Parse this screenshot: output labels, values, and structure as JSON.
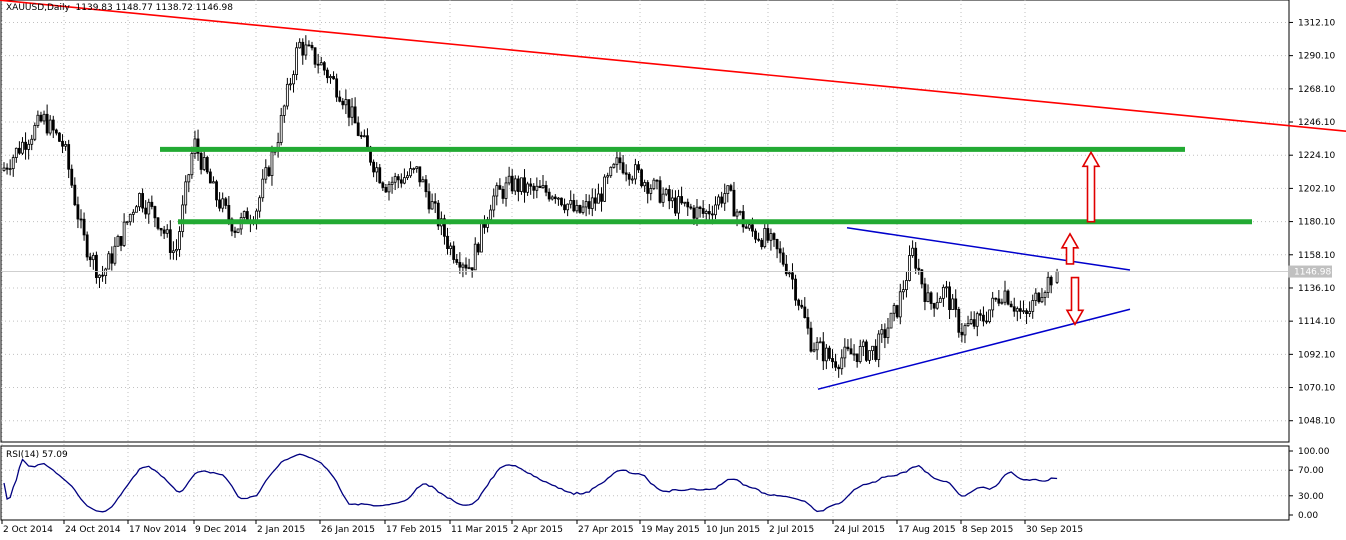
{
  "header": {
    "symbol": "XAUUSD,Daily",
    "ohlc": "1139.83 1148.77 1138.72 1146.98"
  },
  "rsi_header": "RSI(14) 57.09",
  "current_price_label": "1146.98",
  "colors": {
    "background": "#ffffff",
    "grid": "#c0c0c0",
    "candle": "#000000",
    "red_trendline": "#ff0000",
    "green_levels": "#22aa33",
    "blue_triangle": "#0000cc",
    "rsi_line": "#000080",
    "arrows": "#e00000"
  },
  "chart_data": [
    {
      "type": "candlestick",
      "title": "XAUUSD,Daily",
      "instrument": "XAUUSD",
      "timeframe": "Daily",
      "last_bar": {
        "open": 1139.83,
        "high": 1148.77,
        "low": 1138.72,
        "close": 1146.98
      },
      "ylim": [
        1034,
        1323
      ],
      "yticks": [
        1048.1,
        1070.1,
        1092.1,
        1114.1,
        1136.1,
        1158.1,
        1180.1,
        1202.1,
        1224.1,
        1246.1,
        1268.1,
        1290.1,
        1312.1
      ],
      "xticks": [
        "2 Oct 2014",
        "24 Oct 2014",
        "17 Nov 2014",
        "9 Dec 2014",
        "2 Jan 2015",
        "26 Jan 2015",
        "17 Feb 2015",
        "11 Mar 2015",
        "2 Apr 2015",
        "27 Apr 2015",
        "19 May 2015",
        "10 Jun 2015",
        "2 Jul 2015",
        "24 Jul 2015",
        "17 Aug 2015",
        "8 Sep 2015",
        "30 Sep 2015"
      ],
      "close_path": [
        [
          "2 Oct 2014",
          1214
        ],
        [
          "10 Oct 2014",
          1232
        ],
        [
          "17 Oct 2014",
          1248
        ],
        [
          "24 Oct 2014",
          1230
        ],
        [
          "31 Oct 2014",
          1170
        ],
        [
          "6 Nov 2014",
          1143
        ],
        [
          "14 Nov 2014",
          1168
        ],
        [
          "21 Nov 2014",
          1198
        ],
        [
          "28 Nov 2014",
          1183
        ],
        [
          "1 Dec 2014",
          1158
        ],
        [
          "9 Dec 2014",
          1233
        ],
        [
          "16 Dec 2014",
          1198
        ],
        [
          "24 Dec 2014",
          1176
        ],
        [
          "2 Jan 2015",
          1188
        ],
        [
          "12 Jan 2015",
          1235
        ],
        [
          "22 Jan 2015",
          1298
        ],
        [
          "26 Jan 2015",
          1285
        ],
        [
          "2 Feb 2015",
          1265
        ],
        [
          "10 Feb 2015",
          1232
        ],
        [
          "17 Feb 2015",
          1205
        ],
        [
          "27 Feb 2015",
          1213
        ],
        [
          "11 Mar 2015",
          1163
        ],
        [
          "17 Mar 2015",
          1150
        ],
        [
          "25 Mar 2015",
          1195
        ],
        [
          "2 Apr 2015",
          1205
        ],
        [
          "10 Apr 2015",
          1200
        ],
        [
          "20 Apr 2015",
          1200
        ],
        [
          "27 Apr 2015",
          1185
        ],
        [
          "5 May 2015",
          1195
        ],
        [
          "14 May 2015",
          1220
        ],
        [
          "19 May 2015",
          1210
        ],
        [
          "29 May 2015",
          1192
        ],
        [
          "10 Jun 2015",
          1185
        ],
        [
          "18 Jun 2015",
          1200
        ],
        [
          "25 Jun 2015",
          1175
        ],
        [
          "2 Jul 2015",
          1168
        ],
        [
          "14 Jul 2015",
          1148
        ],
        [
          "20 Jul 2015",
          1100
        ],
        [
          "24 Jul 2015",
          1088
        ],
        [
          "31 Jul 2015",
          1093
        ],
        [
          "7 Aug 2015",
          1095
        ],
        [
          "17 Aug 2015",
          1122
        ],
        [
          "21 Aug 2015",
          1160
        ],
        [
          "26 Aug 2015",
          1125
        ],
        [
          "2 Sep 2015",
          1135
        ],
        [
          "8 Sep 2015",
          1108
        ],
        [
          "15 Sep 2015",
          1115
        ],
        [
          "23 Sep 2015",
          1135
        ],
        [
          "30 Sep 2015",
          1115
        ],
        [
          "5 Oct 2015",
          1135
        ],
        [
          "12 Oct 2015",
          1146.98
        ]
      ],
      "annotations": {
        "red_trendline": [
          [
            "2 Oct 2014",
            1328
          ],
          [
            "end",
            1240
          ]
        ],
        "green_levels": [
          1228,
          1180
        ],
        "triangle_upper": [
          [
            "27 Jul 2015",
            1176
          ],
          [
            "21 Oct 2015",
            1148
          ]
        ],
        "triangle_lower": [
          [
            "22 Jul 2015",
            1069
          ],
          [
            "21 Oct 2015",
            1122
          ]
        ],
        "arrows": [
          {
            "direction": "up",
            "from": 1180,
            "to": 1226
          },
          {
            "direction": "up",
            "from": 1152,
            "to": 1172
          },
          {
            "direction": "down",
            "from": 1143,
            "to": 1112
          }
        ]
      }
    },
    {
      "type": "line",
      "title": "RSI(14) 57.09",
      "ylim": [
        0,
        100
      ],
      "yticks": [
        0.0,
        30.0,
        70.0,
        100.0
      ],
      "last_value": 57.09
    }
  ]
}
